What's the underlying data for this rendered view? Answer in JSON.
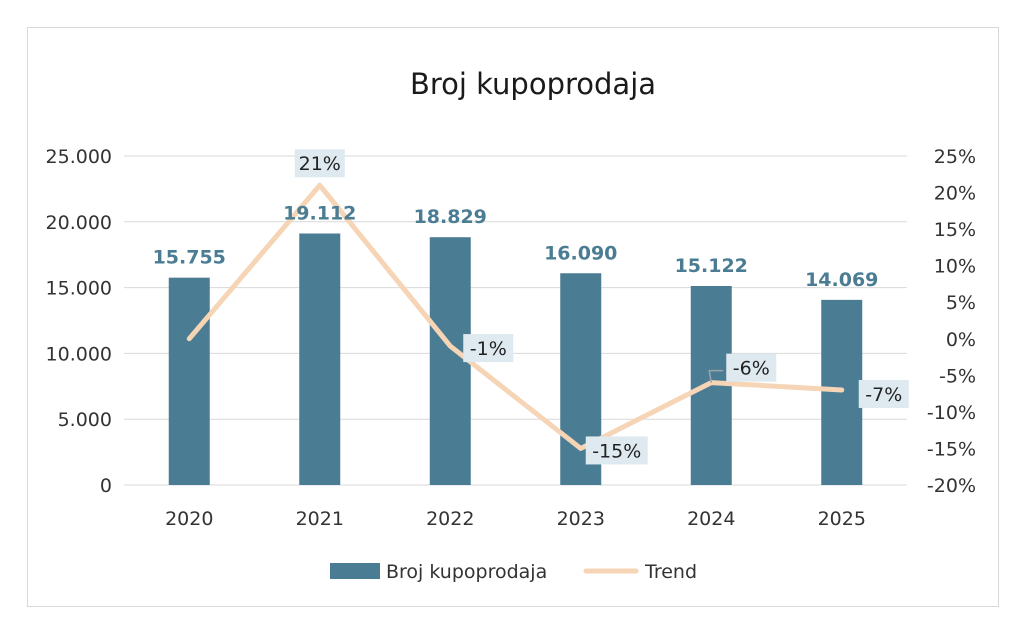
{
  "chart_data": {
    "type": "bar",
    "title": "Broj kupoprodaja",
    "categories": [
      "2020",
      "2021",
      "2022",
      "2023",
      "2024",
      "2025"
    ],
    "series": [
      {
        "name": "Broj kupoprodaja",
        "type": "bar",
        "axis": "left",
        "values": [
          15755,
          19112,
          18829,
          16090,
          15122,
          14069
        ],
        "labels": [
          "15.755",
          "19.112",
          "18.829",
          "16.090",
          "15.122",
          "14.069"
        ],
        "color": "#4a7c93"
      },
      {
        "name": "Trend",
        "type": "line",
        "axis": "right",
        "values": [
          0,
          21,
          -1,
          -15,
          -6,
          -7
        ],
        "labels": [
          "",
          "21%",
          "-1%",
          "-15%",
          "-6%",
          "-7%"
        ],
        "color": "#f5d5b5"
      }
    ],
    "y_left": {
      "ylim": [
        0,
        25000
      ],
      "ticks": [
        0,
        5000,
        10000,
        15000,
        20000,
        25000
      ],
      "tick_labels": [
        "0",
        "5.000",
        "10.000",
        "15.000",
        "20.000",
        "25.000"
      ]
    },
    "y_right": {
      "ylim": [
        -20,
        25
      ],
      "ticks": [
        -20,
        -15,
        -10,
        -5,
        0,
        5,
        10,
        15,
        20,
        25
      ],
      "tick_labels": [
        "-20%",
        "-15%",
        "-10%",
        "-5%",
        "0%",
        "5%",
        "10%",
        "15%",
        "20%",
        "25%"
      ]
    },
    "grid": true,
    "legend_position": "bottom",
    "colors": {
      "bar": "#4a7c93",
      "line": "#f5d5b5",
      "label_box": "#deeaf0",
      "grid": "#d9d9d9"
    }
  }
}
